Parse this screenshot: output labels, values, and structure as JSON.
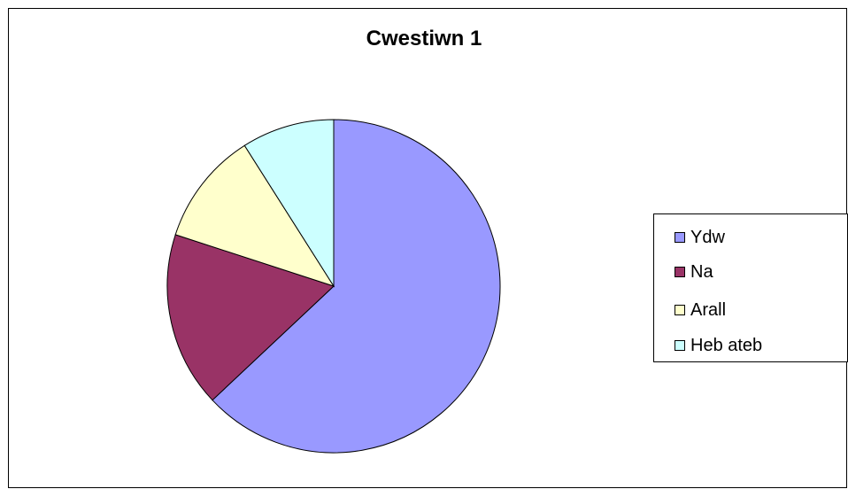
{
  "chart_data": {
    "type": "pie",
    "title": "Cwestiwn 1",
    "categories": [
      "Ydw",
      "Na",
      "Arall",
      "Heb ateb"
    ],
    "values": [
      63,
      17,
      11,
      9
    ],
    "colors": [
      "#9999FF",
      "#993366",
      "#FFFFCC",
      "#CCFFFF"
    ],
    "start_angle_deg": 0,
    "direction": "clockwise",
    "legend": "right"
  }
}
